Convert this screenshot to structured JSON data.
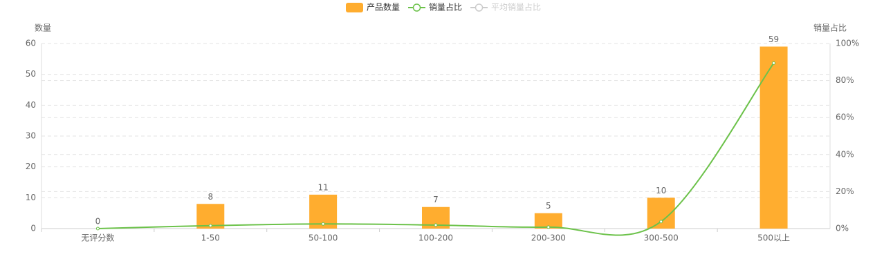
{
  "chart_data": {
    "type": "bar",
    "categories": [
      "无评分数",
      "1-50",
      "50-100",
      "100-200",
      "200-300",
      "300-500",
      "500以上"
    ],
    "y_label": "数量",
    "y2_label": "销量占比",
    "series": [
      {
        "name": "产品数量",
        "type": "bar",
        "color": "#ffad2f",
        "values": [
          0,
          8,
          11,
          7,
          5,
          10,
          59
        ]
      },
      {
        "name": "销量占比",
        "type": "line",
        "axis": "y2",
        "color": "#6cc24a",
        "values": [
          0,
          1.6,
          2.5,
          1.9,
          0.8,
          3.8,
          89.4
        ]
      },
      {
        "name": "平均销量占比",
        "type": "line",
        "color": "#cccccc",
        "hidden": true
      }
    ],
    "ylim": [
      0,
      60
    ],
    "yticks": [
      0,
      10,
      20,
      30,
      40,
      50,
      60
    ],
    "y2lim": [
      0,
      100
    ],
    "y2ticks": [
      {
        "value": 0,
        "label": "0%"
      },
      {
        "value": 20,
        "label": "20%"
      },
      {
        "value": 40,
        "label": "40%"
      },
      {
        "value": 60,
        "label": "60%"
      },
      {
        "value": 80,
        "label": "80%"
      },
      {
        "value": 100,
        "label": "100%"
      }
    ],
    "grid": true
  }
}
